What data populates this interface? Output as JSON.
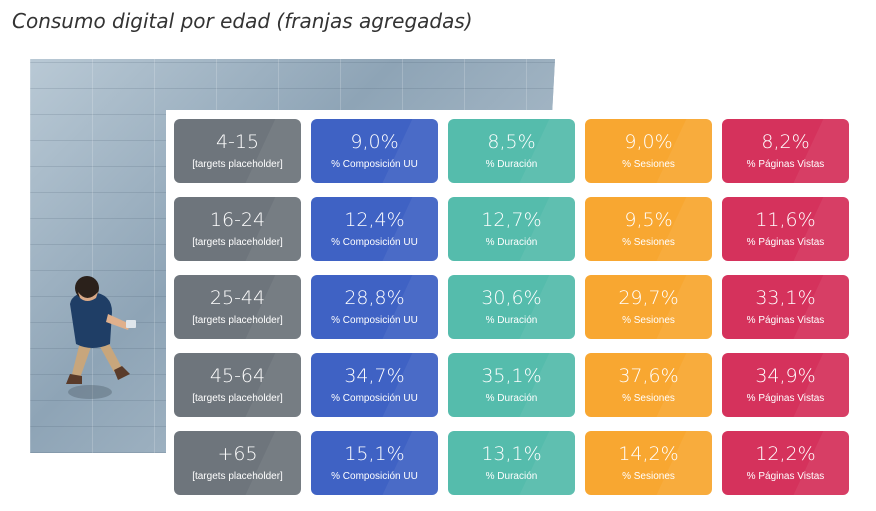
{
  "title": "Consumo digital por edad (franjas agregadas)",
  "colors": {
    "age": "#6e757c",
    "composicion": "#3f62c4",
    "duracion": "#55bcac",
    "sesiones": "#f8a731",
    "paginas": "#d5325c"
  },
  "metric_labels": {
    "target": "[targets placeholder]",
    "composicion": "% Composición UU",
    "duracion": "% Duración",
    "sesiones": "% Sesiones",
    "paginas": "% Páginas Vistas"
  },
  "rows": [
    {
      "age": "4-15",
      "composicion": "9,0%",
      "duracion": "8,5%",
      "sesiones": "9,0%",
      "paginas": "8,2%"
    },
    {
      "age": "16-24",
      "composicion": "12,4%",
      "duracion": "12,7%",
      "sesiones": "9,5%",
      "paginas": "11,6%"
    },
    {
      "age": "25-44",
      "composicion": "28,8%",
      "duracion": "30,6%",
      "sesiones": "29,7%",
      "paginas": "33,1%"
    },
    {
      "age": "45-64",
      "composicion": "34,7%",
      "duracion": "35,1%",
      "sesiones": "37,6%",
      "paginas": "34,9%"
    },
    {
      "age": "+65",
      "composicion": "15,1%",
      "duracion": "13,1%",
      "sesiones": "14,2%",
      "paginas": "12,2%"
    }
  ]
}
